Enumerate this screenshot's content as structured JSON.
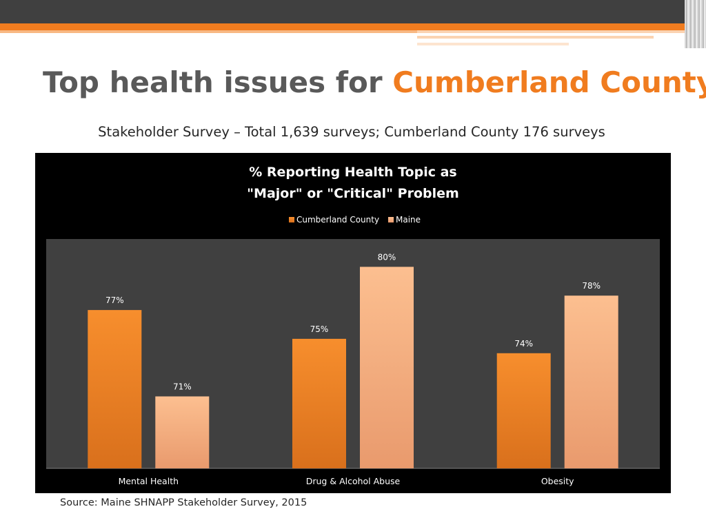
{
  "slide": {
    "title_main": "Top health issues for ",
    "title_accent": "Cumberland County",
    "subtitle": "Stakeholder Survey – Total 1,639 surveys;  Cumberland County 176 surveys",
    "source": "Source: Maine SHNAPP Stakeholder Survey, 2015"
  },
  "colors": {
    "accent": "#f07c1f",
    "dark_bar": "#404040",
    "series_cumberland": "#f28a2e",
    "series_maine": "#fbb98a"
  },
  "chart_data": {
    "type": "bar",
    "title_line1": "% Reporting Health Topic as",
    "title_line2": "\"Major\" or \"Critical\" Problem",
    "categories": [
      "Mental Health",
      "Drug & Alcohol Abuse",
      "Obesity"
    ],
    "series": [
      {
        "name": "Cumberland County",
        "values": [
          77,
          75,
          74
        ],
        "labels": [
          "77%",
          "75%",
          "74%"
        ]
      },
      {
        "name": "Maine",
        "values": [
          71,
          80,
          78
        ],
        "labels": [
          "71%",
          "80%",
          "78%"
        ]
      }
    ],
    "ylim": [
      66,
      81
    ],
    "legend_position": "top-center",
    "grid": false
  }
}
